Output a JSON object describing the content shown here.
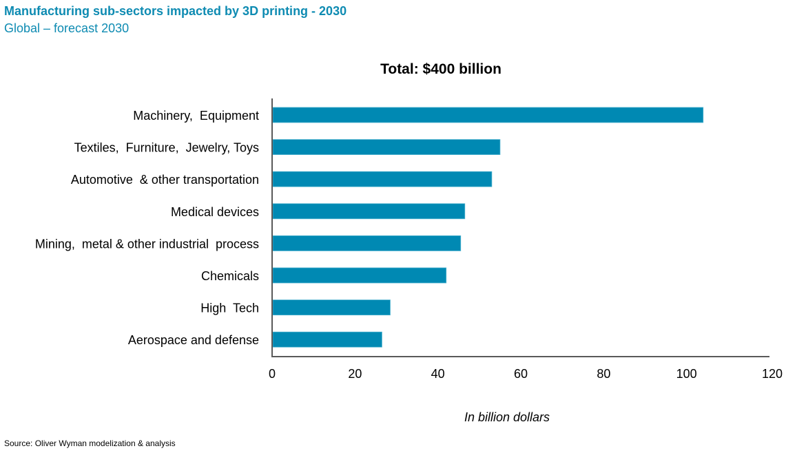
{
  "header": {
    "title": "Manufacturing sub-sectors impacted by 3D printing  - 2030",
    "subtitle": "Global – forecast 2030"
  },
  "footer": {
    "source": "Source:  Oliver  Wyman modelization  & analysis"
  },
  "colors": {
    "bar": "#0089b3",
    "title": "#0e8bb2",
    "axis": "#595959"
  },
  "chart_data": {
    "type": "bar",
    "orientation": "horizontal",
    "title": "Total: $400 billion",
    "xlabel": "In billion dollars",
    "ylabel": "",
    "categories": [
      "Machinery,  Equipment",
      "Textiles,  Furniture,  Jewelry, Toys",
      "Automotive  & other transportation",
      "Medical devices",
      "Mining,  metal & other industrial  process",
      "Chemicals",
      "High  Tech",
      "Aerospace and defense"
    ],
    "values": [
      104,
      55,
      53,
      46.5,
      45.5,
      42,
      28.5,
      26.5
    ],
    "xlim": [
      0,
      120
    ],
    "xticks": [
      0,
      20,
      40,
      60,
      80,
      100,
      120
    ],
    "grid": false,
    "legend": "none"
  }
}
